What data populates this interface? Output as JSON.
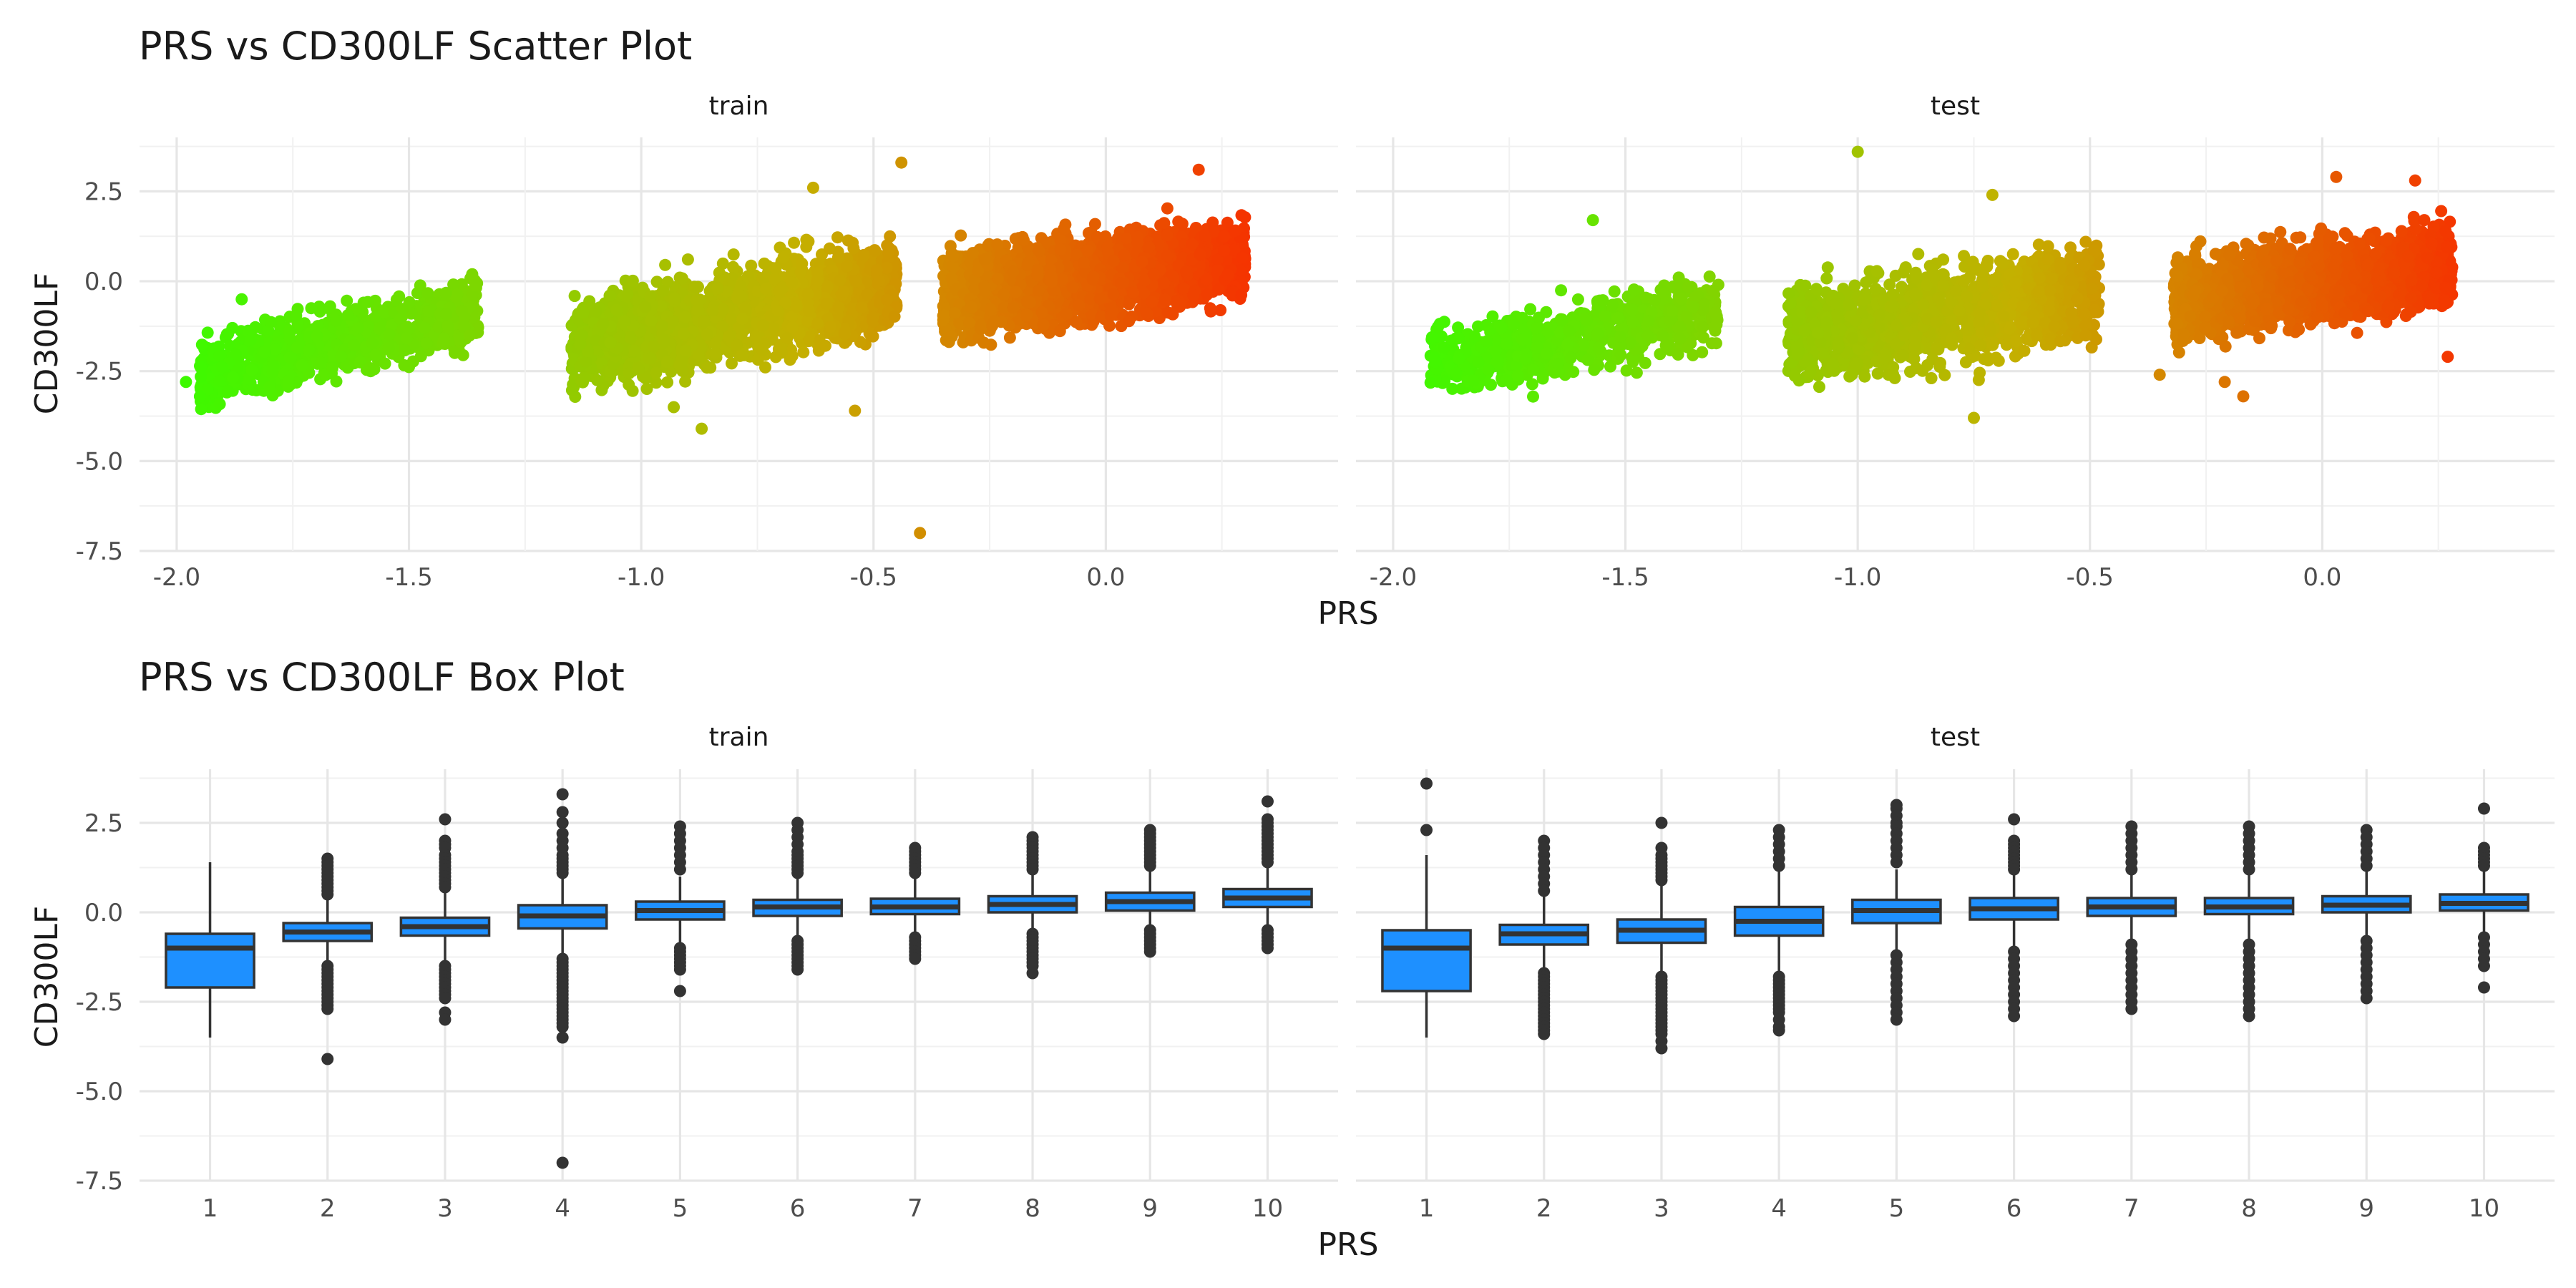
{
  "chart_data": [
    {
      "type": "scatter",
      "title": "PRS vs CD300LF Scatter Plot",
      "xlabel": "PRS",
      "ylabel": "CD300LF",
      "facets": [
        "train",
        "test"
      ],
      "xlim": [
        -2.08,
        0.5
      ],
      "ylim": [
        -7.5,
        4.0
      ],
      "x_ticks": [
        -2.0,
        -1.5,
        -1.0,
        -0.5,
        0.0
      ],
      "x_tick_labels": [
        "-2.0",
        "-1.5",
        "-1.0",
        "-0.5",
        "0.0"
      ],
      "y_ticks": [
        2.5,
        0.0,
        -2.5,
        -5.0,
        -7.5
      ],
      "y_tick_labels": [
        "2.5",
        "0.0",
        "-2.5",
        "-5.0",
        "-7.5"
      ],
      "grid": true,
      "color_gradient": {
        "low": "#33ff00",
        "mid": "#c4b000",
        "high": "#ff1a00",
        "mapped_to": "PRS"
      },
      "clusters": {
        "train": [
          {
            "x_range": [
              -1.95,
              -1.35
            ],
            "y_center_left": -2.6,
            "y_center_right": -0.8,
            "spread": 0.45,
            "n": 900
          },
          {
            "x_range": [
              -1.15,
              -0.45
            ],
            "y_center_left": -1.8,
            "y_center_right": -0.1,
            "spread": 0.6,
            "n": 2000
          },
          {
            "x_range": [
              -0.35,
              0.3
            ],
            "y_center_left": -0.4,
            "y_center_right": 0.6,
            "spread": 0.55,
            "n": 2600
          }
        ],
        "test": [
          {
            "x_range": [
              -1.92,
              -1.3
            ],
            "y_center_left": -2.3,
            "y_center_right": -0.8,
            "spread": 0.5,
            "n": 700
          },
          {
            "x_range": [
              -1.15,
              -0.48
            ],
            "y_center_left": -1.5,
            "y_center_right": -0.3,
            "spread": 0.65,
            "n": 1400
          },
          {
            "x_range": [
              -0.32,
              0.28
            ],
            "y_center_left": -0.5,
            "y_center_right": 0.4,
            "spread": 0.55,
            "n": 1800
          }
        ]
      },
      "outliers": {
        "train": [
          [
            -1.98,
            -2.8
          ],
          [
            -1.95,
            -3.2
          ],
          [
            -1.86,
            -0.5
          ],
          [
            -1.88,
            -1.3
          ],
          [
            -0.87,
            -4.1
          ],
          [
            -0.93,
            -3.5
          ],
          [
            -0.54,
            -3.6
          ],
          [
            -0.44,
            3.3
          ],
          [
            -0.4,
            -7.0
          ],
          [
            -0.63,
            2.6
          ],
          [
            0.2,
            3.1
          ]
        ],
        "test": [
          [
            -1.0,
            3.6
          ],
          [
            -1.57,
            1.7
          ],
          [
            -0.71,
            2.4
          ],
          [
            -0.75,
            -3.8
          ],
          [
            -0.35,
            -2.6
          ],
          [
            0.03,
            2.9
          ],
          [
            0.2,
            2.8
          ],
          [
            -0.17,
            -3.2
          ],
          [
            -0.21,
            -2.8
          ],
          [
            0.27,
            -2.1
          ]
        ]
      }
    },
    {
      "type": "box",
      "title": "PRS vs CD300LF Box Plot",
      "xlabel": "PRS",
      "ylabel": "CD300LF",
      "facets": [
        "train",
        "test"
      ],
      "categories": [
        "1",
        "2",
        "3",
        "4",
        "5",
        "6",
        "7",
        "8",
        "9",
        "10"
      ],
      "ylim": [
        -7.5,
        4.0
      ],
      "y_ticks": [
        2.5,
        0.0,
        -2.5,
        -5.0,
        -7.5
      ],
      "y_tick_labels": [
        "2.5",
        "0.0",
        "-2.5",
        "-5.0",
        "-7.5"
      ],
      "grid": true,
      "fill_color": "#1e90ff",
      "boxes": {
        "train": [
          {
            "q1": -2.1,
            "median": -1.0,
            "q3": -0.6,
            "lo": -3.5,
            "hi": 1.4,
            "outliers": []
          },
          {
            "q1": -0.8,
            "median": -0.55,
            "q3": -0.3,
            "lo": -1.4,
            "hi": 0.4,
            "outliers": [
              1.5,
              1.4,
              1.3,
              1.2,
              1.1,
              1.0,
              0.9,
              0.8,
              0.7,
              0.6,
              0.5,
              -1.5,
              -1.6,
              -1.7,
              -1.8,
              -1.9,
              -2.0,
              -2.1,
              -2.2,
              -2.3,
              -2.4,
              -2.5,
              -2.6,
              -2.7,
              -4.1
            ]
          },
          {
            "q1": -0.65,
            "median": -0.4,
            "q3": -0.15,
            "lo": -1.35,
            "hi": 0.55,
            "outliers": [
              2.6,
              2.0,
              1.9,
              1.8,
              1.6,
              1.5,
              1.4,
              1.3,
              1.2,
              1.1,
              1.0,
              0.9,
              0.8,
              0.7,
              -1.5,
              -1.6,
              -1.7,
              -1.8,
              -1.9,
              -2.0,
              -2.1,
              -2.2,
              -2.3,
              -2.4,
              -2.8,
              -3.0
            ]
          },
          {
            "q1": -0.45,
            "median": -0.1,
            "q3": 0.2,
            "lo": -1.2,
            "hi": 1.0,
            "outliers": [
              3.3,
              2.8,
              2.5,
              2.2,
              2.0,
              1.8,
              1.6,
              1.5,
              1.4,
              1.3,
              1.2,
              1.1,
              -1.3,
              -1.4,
              -1.5,
              -1.6,
              -1.7,
              -1.8,
              -1.9,
              -2.0,
              -2.1,
              -2.2,
              -2.3,
              -2.4,
              -2.5,
              -2.6,
              -2.7,
              -2.8,
              -2.9,
              -3.0,
              -3.1,
              -3.2,
              -3.5,
              -7.0
            ]
          },
          {
            "q1": -0.2,
            "median": 0.05,
            "q3": 0.3,
            "lo": -0.9,
            "hi": 1.0,
            "outliers": [
              2.4,
              2.2,
              2.0,
              1.8,
              1.6,
              1.4,
              1.2,
              -1.0,
              -1.1,
              -1.2,
              -1.3,
              -1.4,
              -1.5,
              -1.6,
              -2.2
            ]
          },
          {
            "q1": -0.1,
            "median": 0.15,
            "q3": 0.35,
            "lo": -0.7,
            "hi": 1.0,
            "outliers": [
              2.5,
              2.3,
              2.1,
              1.9,
              1.7,
              1.6,
              1.5,
              1.4,
              1.3,
              1.2,
              1.1,
              -0.8,
              -0.9,
              -1.0,
              -1.1,
              -1.2,
              -1.3,
              -1.4,
              -1.5,
              -1.6
            ]
          },
          {
            "q1": -0.05,
            "median": 0.15,
            "q3": 0.38,
            "lo": -0.6,
            "hi": 1.0,
            "outliers": [
              1.8,
              1.7,
              1.6,
              1.5,
              1.4,
              1.3,
              1.2,
              1.1,
              -0.7,
              -0.8,
              -0.9,
              -1.0,
              -1.1,
              -1.2,
              -1.3
            ]
          },
          {
            "q1": 0.0,
            "median": 0.22,
            "q3": 0.45,
            "lo": -0.5,
            "hi": 1.1,
            "outliers": [
              2.1,
              2.0,
              1.9,
              1.8,
              1.7,
              1.6,
              1.5,
              1.4,
              1.3,
              1.2,
              -0.6,
              -0.7,
              -0.8,
              -0.9,
              -1.0,
              -1.1,
              -1.2,
              -1.3,
              -1.4,
              -1.5,
              -1.7
            ]
          },
          {
            "q1": 0.05,
            "median": 0.3,
            "q3": 0.55,
            "lo": -0.45,
            "hi": 1.2,
            "outliers": [
              2.3,
              2.2,
              2.1,
              2.0,
              1.9,
              1.8,
              1.7,
              1.6,
              1.5,
              1.4,
              1.3,
              -0.5,
              -0.6,
              -0.7,
              -0.8,
              -0.9,
              -1.0,
              -1.1
            ]
          },
          {
            "q1": 0.15,
            "median": 0.4,
            "q3": 0.65,
            "lo": -0.4,
            "hi": 1.3,
            "outliers": [
              3.1,
              2.6,
              2.5,
              2.4,
              2.3,
              2.2,
              2.1,
              2.0,
              1.9,
              1.8,
              1.7,
              1.6,
              1.5,
              1.4,
              -0.5,
              -0.6,
              -0.7,
              -0.8,
              -0.9,
              -1.0
            ]
          }
        ],
        "test": [
          {
            "q1": -2.2,
            "median": -1.0,
            "q3": -0.5,
            "lo": -3.5,
            "hi": 1.6,
            "outliers": [
              3.6,
              2.3
            ]
          },
          {
            "q1": -0.9,
            "median": -0.6,
            "q3": -0.35,
            "lo": -1.6,
            "hi": 0.45,
            "outliers": [
              2.0,
              1.8,
              1.6,
              1.4,
              1.2,
              1.0,
              0.8,
              0.6,
              -1.7,
              -1.8,
              -1.9,
              -2.0,
              -2.1,
              -2.2,
              -2.3,
              -2.4,
              -2.5,
              -2.6,
              -2.7,
              -2.8,
              -2.9,
              -3.0,
              -3.1,
              -3.2,
              -3.3,
              -3.4
            ]
          },
          {
            "q1": -0.85,
            "median": -0.5,
            "q3": -0.2,
            "lo": -1.7,
            "hi": 0.8,
            "outliers": [
              2.5,
              1.8,
              1.6,
              1.5,
              1.4,
              1.3,
              1.2,
              1.1,
              1.0,
              0.9,
              -1.8,
              -1.9,
              -2.0,
              -2.1,
              -2.2,
              -2.3,
              -2.4,
              -2.5,
              -2.6,
              -2.7,
              -2.8,
              -2.9,
              -3.0,
              -3.1,
              -3.2,
              -3.3,
              -3.4,
              -3.6,
              -3.8
            ]
          },
          {
            "q1": -0.65,
            "median": -0.25,
            "q3": 0.15,
            "lo": -1.7,
            "hi": 1.2,
            "outliers": [
              2.3,
              2.1,
              1.9,
              1.7,
              1.5,
              1.3,
              -1.8,
              -1.9,
              -2.0,
              -2.1,
              -2.2,
              -2.3,
              -2.4,
              -2.5,
              -2.6,
              -2.7,
              -2.8,
              -3.0,
              -3.2,
              -3.3
            ]
          },
          {
            "q1": -0.3,
            "median": 0.05,
            "q3": 0.35,
            "lo": -1.1,
            "hi": 1.2,
            "outliers": [
              3.0,
              2.9,
              2.7,
              2.5,
              2.4,
              2.2,
              2.0,
              1.8,
              1.6,
              1.4,
              -1.2,
              -1.4,
              -1.6,
              -1.8,
              -2.0,
              -2.2,
              -2.4,
              -2.6,
              -2.8,
              -3.0
            ]
          },
          {
            "q1": -0.2,
            "median": 0.1,
            "q3": 0.4,
            "lo": -1.0,
            "hi": 1.1,
            "outliers": [
              2.6,
              2.0,
              1.9,
              1.8,
              1.7,
              1.6,
              1.5,
              1.4,
              1.3,
              1.2,
              -1.1,
              -1.3,
              -1.5,
              -1.7,
              -1.9,
              -2.1,
              -2.3,
              -2.5,
              -2.7,
              -2.9
            ]
          },
          {
            "q1": -0.1,
            "median": 0.15,
            "q3": 0.4,
            "lo": -0.8,
            "hi": 1.1,
            "outliers": [
              2.4,
              2.2,
              2.0,
              1.8,
              1.6,
              1.4,
              1.2,
              -0.9,
              -1.1,
              -1.3,
              -1.5,
              -1.7,
              -1.9,
              -2.1,
              -2.3,
              -2.5,
              -2.7
            ]
          },
          {
            "q1": -0.05,
            "median": 0.15,
            "q3": 0.4,
            "lo": -0.75,
            "hi": 1.1,
            "outliers": [
              2.4,
              2.2,
              2.0,
              1.8,
              1.6,
              1.4,
              1.2,
              -0.9,
              -1.1,
              -1.3,
              -1.5,
              -1.7,
              -1.9,
              -2.1,
              -2.3,
              -2.5,
              -2.7,
              -2.9
            ]
          },
          {
            "q1": 0.0,
            "median": 0.2,
            "q3": 0.45,
            "lo": -0.7,
            "hi": 1.15,
            "outliers": [
              2.3,
              2.1,
              1.9,
              1.7,
              1.5,
              1.3,
              -0.8,
              -1.0,
              -1.2,
              -1.4,
              -1.6,
              -1.8,
              -2.0,
              -2.2,
              -2.4
            ]
          },
          {
            "q1": 0.05,
            "median": 0.25,
            "q3": 0.5,
            "lo": -0.6,
            "hi": 1.2,
            "outliers": [
              2.9,
              1.8,
              1.7,
              1.6,
              1.5,
              1.4,
              1.3,
              -0.7,
              -0.9,
              -1.1,
              -1.3,
              -1.5,
              -2.1
            ]
          }
        ]
      }
    }
  ]
}
